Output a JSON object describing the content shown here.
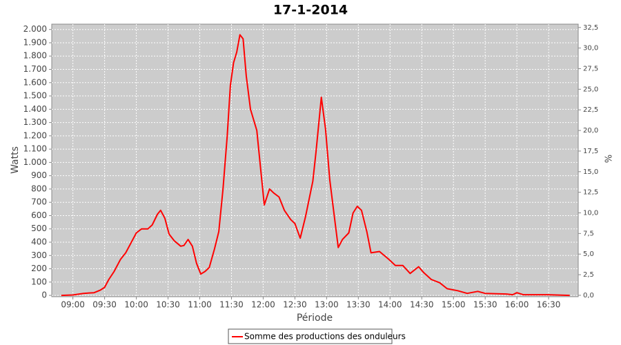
{
  "chart_data": {
    "type": "line",
    "title": "17-1-2014",
    "x_label": "Période",
    "y_label": "Watts",
    "y2_label": "%",
    "x": [
      "08:49",
      "09:00",
      "09:10",
      "09:20",
      "09:26",
      "09:30",
      "09:34",
      "09:39",
      "09:45",
      "09:50",
      "09:56",
      "10:00",
      "10:05",
      "10:11",
      "10:15",
      "10:20",
      "10:23",
      "10:27",
      "10:31",
      "10:36",
      "10:42",
      "10:45",
      "10:49",
      "10:53",
      "10:57",
      "11:01",
      "11:05",
      "11:09",
      "11:14",
      "11:18",
      "11:22",
      "11:26",
      "11:29",
      "11:32",
      "11:35",
      "11:38",
      "11:41",
      "11:44",
      "11:48",
      "11:54",
      "11:57",
      "12:01",
      "12:06",
      "12:10",
      "12:15",
      "12:20",
      "12:26",
      "12:30",
      "12:35",
      "12:40",
      "12:47",
      "12:50",
      "12:55",
      "12:59",
      "13:03",
      "13:08",
      "13:11",
      "13:15",
      "13:21",
      "13:25",
      "13:29",
      "13:33",
      "13:38",
      "13:42",
      "13:50",
      "13:59",
      "14:05",
      "14:12",
      "14:19",
      "14:27",
      "14:32",
      "14:39",
      "14:47",
      "14:54",
      "15:04",
      "15:13",
      "15:23",
      "15:30",
      "15:50",
      "15:56",
      "16:00",
      "16:06",
      "16:29",
      "16:50"
    ],
    "series": [
      {
        "name": "Somme des productions des onduleurs",
        "color": "#ff0000",
        "values": [
          0,
          3,
          15,
          20,
          40,
          60,
          120,
          180,
          270,
          320,
          410,
          470,
          500,
          500,
          530,
          610,
          640,
          580,
          460,
          410,
          370,
          375,
          420,
          370,
          240,
          160,
          180,
          210,
          350,
          480,
          800,
          1200,
          1580,
          1750,
          1830,
          1960,
          1930,
          1650,
          1400,
          1240,
          1000,
          680,
          800,
          770,
          740,
          640,
          570,
          540,
          430,
          590,
          860,
          1080,
          1490,
          1250,
          870,
          550,
          360,
          420,
          470,
          620,
          670,
          640,
          480,
          320,
          330,
          270,
          225,
          225,
          165,
          215,
          170,
          120,
          95,
          50,
          35,
          15,
          30,
          15,
          10,
          5,
          20,
          5,
          5,
          0
        ]
      }
    ],
    "xlim": [
      "08:40",
      "16:58"
    ],
    "xticks": [
      "09:00",
      "09:30",
      "10:00",
      "10:30",
      "11:00",
      "11:30",
      "12:00",
      "12:30",
      "13:00",
      "13:30",
      "14:00",
      "14:30",
      "15:00",
      "15:30",
      "16:00",
      "16:30"
    ],
    "ylim": [
      -10,
      2040
    ],
    "yticks": [
      0,
      100,
      200,
      300,
      400,
      500,
      600,
      700,
      800,
      900,
      {
        "value": 1000,
        "label": "1.000"
      },
      {
        "value": 1100,
        "label": "1.100"
      },
      {
        "value": 1200,
        "label": "1.200"
      },
      {
        "value": 1300,
        "label": "1.300"
      },
      {
        "value": 1400,
        "label": "1.400"
      },
      {
        "value": 1500,
        "label": "1.500"
      },
      {
        "value": 1600,
        "label": "1.600"
      },
      {
        "value": 1700,
        "label": "1.700"
      },
      {
        "value": 1800,
        "label": "1.800"
      },
      {
        "value": 1900,
        "label": "1.900"
      },
      {
        "value": 2000,
        "label": "2.000"
      }
    ],
    "y2lim": [
      -0.17,
      32.9
    ],
    "y2ticks": [
      {
        "value": 0,
        "label": "0,0"
      },
      {
        "value": 2.5,
        "label": "2,5"
      },
      {
        "value": 5,
        "label": "5,0"
      },
      {
        "value": 7.5,
        "label": "7,5"
      },
      {
        "value": 10,
        "label": "10,0"
      },
      {
        "value": 12.5,
        "label": "12,5"
      },
      {
        "value": 15,
        "label": "15,0"
      },
      {
        "value": 17.5,
        "label": "17,5"
      },
      {
        "value": 20,
        "label": "20,0"
      },
      {
        "value": 22.5,
        "label": "22,5"
      },
      {
        "value": 25,
        "label": "25,0"
      },
      {
        "value": 27.5,
        "label": "27,5"
      },
      {
        "value": 30,
        "label": "30,0"
      },
      {
        "value": 32.5,
        "label": "32,5"
      }
    ],
    "grid": true,
    "legend": "bottom"
  }
}
